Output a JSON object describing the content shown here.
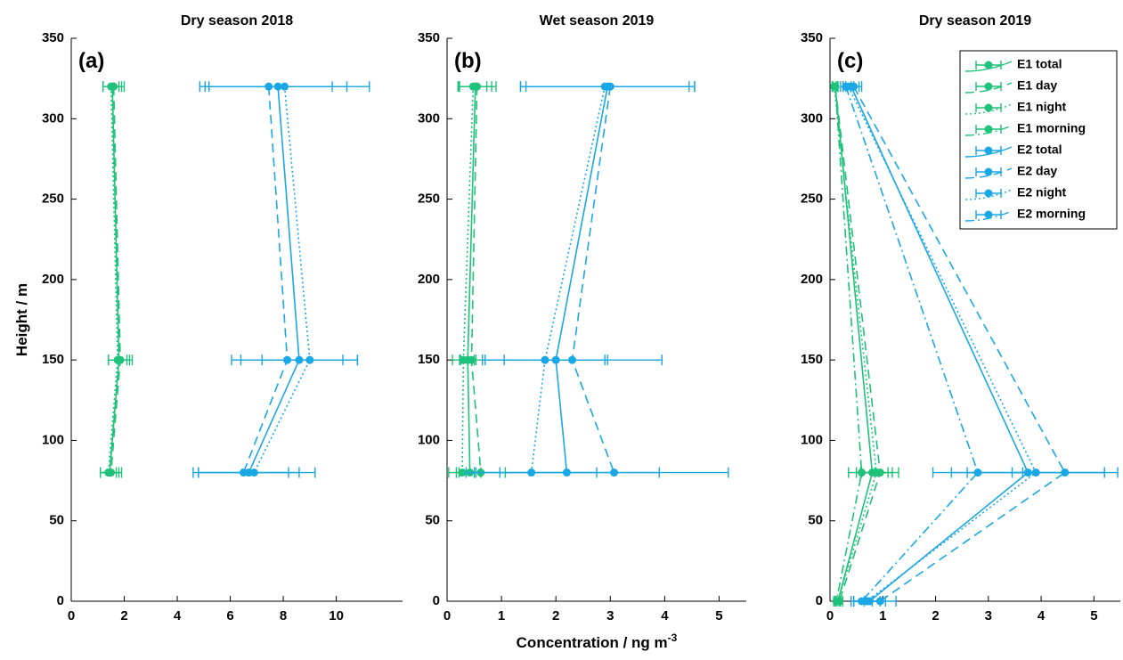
{
  "chart_data": [
    {
      "type": "line",
      "title": "Dry season 2018",
      "annotation": "(a)",
      "ylabel": "Height / m",
      "heights": [
        320,
        150,
        80
      ],
      "xlim": [
        0,
        12.5
      ],
      "xticks": [
        0,
        2,
        4,
        6,
        8,
        10
      ],
      "ylim": [
        0,
        350
      ],
      "yticks": [
        0,
        50,
        100,
        150,
        200,
        250,
        300,
        350
      ],
      "series": [
        {
          "color": "#1ec27a",
          "dash": "solid",
          "values": [
            1.55,
            1.8,
            1.45
          ],
          "errors": [
            0.35,
            0.4,
            0.35
          ]
        },
        {
          "color": "#1ec27a",
          "dash": "dashed",
          "values": [
            1.6,
            1.85,
            1.5
          ],
          "errors": [
            0.4,
            0.45,
            0.4
          ]
        },
        {
          "color": "#1ec27a",
          "dash": "dotted",
          "values": [
            1.5,
            1.75,
            1.4
          ],
          "errors": [
            0.3,
            0.35,
            0.3
          ]
        },
        {
          "color": "#1aa7e6",
          "dash": "solid",
          "values": [
            7.8,
            8.6,
            6.7
          ],
          "errors": [
            2.6,
            2.2,
            1.9
          ]
        },
        {
          "color": "#1aa7e6",
          "dash": "dashed",
          "values": [
            7.45,
            8.15,
            6.5
          ],
          "errors": [
            2.4,
            2.1,
            1.7
          ]
        },
        {
          "color": "#1aa7e6",
          "dash": "dotted",
          "values": [
            8.05,
            9.0,
            6.9
          ],
          "errors": [
            3.2,
            1.8,
            2.3
          ]
        }
      ]
    },
    {
      "type": "line",
      "title": "Wet season 2019",
      "annotation": "(b)",
      "xlabel": "Concentration / ng m",
      "xlabel_sup": "-3",
      "heights": [
        320,
        150,
        80
      ],
      "xlim": [
        0,
        5.5
      ],
      "xticks": [
        0,
        1,
        2,
        3,
        4,
        5
      ],
      "ylim": [
        0,
        350
      ],
      "yticks": [
        0,
        50,
        100,
        150,
        200,
        250,
        300,
        350
      ],
      "series": [
        {
          "color": "#1ec27a",
          "dash": "solid",
          "values": [
            0.52,
            0.38,
            0.42
          ],
          "errors": [
            0.3,
            0.15,
            0.2
          ]
        },
        {
          "color": "#1ec27a",
          "dash": "dashed",
          "values": [
            0.55,
            0.45,
            0.62
          ],
          "errors": [
            0.35,
            0.2,
            0.45
          ]
        },
        {
          "color": "#1ec27a",
          "dash": "dotted",
          "values": [
            0.48,
            0.3,
            0.28
          ],
          "errors": [
            0.25,
            0.2,
            0.25
          ]
        },
        {
          "color": "#1aa7e6",
          "dash": "solid",
          "values": [
            2.95,
            2.0,
            2.2
          ],
          "errors": [
            1.6,
            0.95,
            1.7
          ]
        },
        {
          "color": "#1aa7e6",
          "dash": "dashed",
          "values": [
            3.0,
            2.3,
            3.07
          ],
          "errors": [
            1.55,
            1.65,
            2.1
          ]
        },
        {
          "color": "#1aa7e6",
          "dash": "dotted",
          "values": [
            2.9,
            1.8,
            1.55
          ],
          "errors": [
            1.55,
            1.1,
            1.2
          ]
        }
      ]
    },
    {
      "type": "line",
      "title": "Dry season 2019",
      "annotation": "(c)",
      "legend": "top-right",
      "heights": [
        320,
        80,
        0
      ],
      "xlim": [
        0,
        5.5
      ],
      "xticks": [
        0,
        1,
        2,
        3,
        4,
        5
      ],
      "ylim": [
        0,
        350
      ],
      "yticks": [
        0,
        50,
        100,
        150,
        200,
        250,
        300,
        350
      ],
      "series": [
        {
          "name": "E1 total",
          "color": "#1ec27a",
          "dash": "solid",
          "values": [
            0.1,
            0.8,
            0.15
          ],
          "errors": [
            0.05,
            0.3,
            0.05
          ]
        },
        {
          "name": "E1 day",
          "color": "#1ec27a",
          "dash": "dashed",
          "values": [
            0.1,
            0.95,
            0.18
          ],
          "errors": [
            0.05,
            0.35,
            0.06
          ]
        },
        {
          "name": "E1 night",
          "color": "#1ec27a",
          "dash": "dotted",
          "values": [
            0.08,
            0.88,
            0.15
          ],
          "errors": [
            0.04,
            0.3,
            0.05
          ]
        },
        {
          "name": "E1 morning",
          "color": "#1ec27a",
          "dash": "dashdot",
          "values": [
            0.1,
            0.6,
            0.12
          ],
          "errors": [
            0.05,
            0.25,
            0.05
          ]
        },
        {
          "name": "E2 total",
          "color": "#1aa7e6",
          "dash": "solid",
          "values": [
            0.4,
            3.75,
            0.75
          ],
          "errors": [
            0.15,
            1.45,
            0.3
          ]
        },
        {
          "name": "E2 day",
          "color": "#1aa7e6",
          "dash": "dashed",
          "values": [
            0.45,
            4.45,
            0.95
          ],
          "errors": [
            0.15,
            1.0,
            0.3
          ]
        },
        {
          "name": "E2 night",
          "color": "#1aa7e6",
          "dash": "dotted",
          "values": [
            0.35,
            3.9,
            0.7
          ],
          "errors": [
            0.1,
            1.3,
            0.25
          ]
        },
        {
          "name": "E2 morning",
          "color": "#1aa7e6",
          "dash": "dashdot",
          "values": [
            0.3,
            2.8,
            0.6
          ],
          "errors": [
            0.1,
            0.85,
            0.2
          ]
        }
      ]
    }
  ]
}
